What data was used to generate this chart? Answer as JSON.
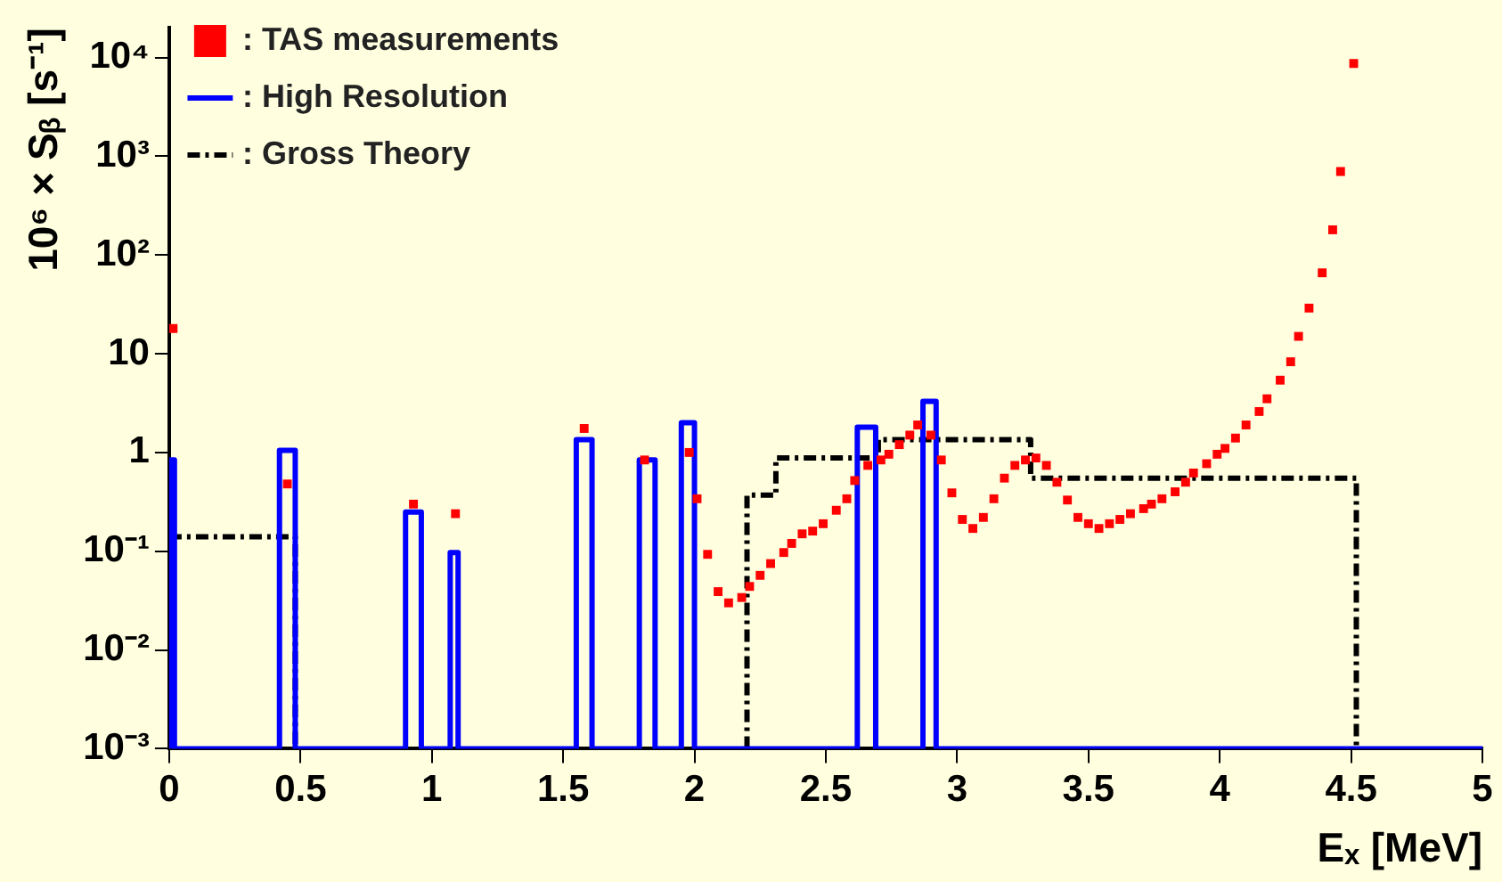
{
  "chart_data": {
    "type": "scatter",
    "xlabel": "Eₓ [MeV]",
    "ylabel": "10⁶ × Sᵦ [s⁻¹]",
    "xlim": [
      0,
      5
    ],
    "xticks": [
      0,
      0.5,
      1,
      1.5,
      2,
      2.5,
      3,
      3.5,
      4,
      4.5,
      5
    ],
    "ylim": [
      0.001,
      20000
    ],
    "yticks": [
      {
        "value": 0.001,
        "label": "10⁻³"
      },
      {
        "value": 0.01,
        "label": "10⁻²"
      },
      {
        "value": 0.1,
        "label": "10⁻¹"
      },
      {
        "value": 1,
        "label": "1"
      },
      {
        "value": 10,
        "label": "10"
      },
      {
        "value": 100,
        "label": "10²"
      },
      {
        "value": 1000,
        "label": "10³"
      },
      {
        "value": 10000,
        "label": "10⁴"
      }
    ],
    "log": "y",
    "legend": "top left",
    "series": [
      {
        "name": ": TAS measurements",
        "type": "scatter",
        "marker": "square",
        "color": "#ff0000",
        "x": [
          0.015,
          0.45,
          0.93,
          1.09,
          1.58,
          1.81,
          1.98,
          2.01,
          2.05,
          2.09,
          2.13,
          2.18,
          2.21,
          2.25,
          2.29,
          2.34,
          2.37,
          2.41,
          2.45,
          2.49,
          2.54,
          2.58,
          2.61,
          2.66,
          2.71,
          2.74,
          2.78,
          2.82,
          2.85,
          2.9,
          2.94,
          2.98,
          3.02,
          3.06,
          3.1,
          3.14,
          3.18,
          3.22,
          3.26,
          3.3,
          3.34,
          3.38,
          3.42,
          3.46,
          3.5,
          3.54,
          3.58,
          3.62,
          3.66,
          3.71,
          3.74,
          3.78,
          3.83,
          3.87,
          3.9,
          3.95,
          3.99,
          4.02,
          4.06,
          4.1,
          4.15,
          4.18,
          4.23,
          4.27,
          4.3,
          4.34,
          4.39,
          4.43,
          4.46,
          4.51
        ],
        "values": [
          18,
          0.48,
          0.3,
          0.24,
          1.75,
          0.84,
          1.0,
          0.34,
          0.093,
          0.039,
          0.03,
          0.034,
          0.044,
          0.057,
          0.075,
          0.097,
          0.12,
          0.15,
          0.16,
          0.19,
          0.26,
          0.34,
          0.52,
          0.74,
          0.84,
          0.96,
          1.2,
          1.5,
          1.9,
          1.5,
          0.84,
          0.39,
          0.21,
          0.17,
          0.22,
          0.34,
          0.55,
          0.74,
          0.84,
          0.88,
          0.74,
          0.5,
          0.33,
          0.22,
          0.19,
          0.17,
          0.19,
          0.21,
          0.24,
          0.27,
          0.3,
          0.34,
          0.4,
          0.5,
          0.62,
          0.77,
          0.96,
          1.1,
          1.4,
          1.9,
          2.6,
          3.5,
          5.4,
          8.3,
          15,
          29,
          66,
          180,
          700,
          8700
        ]
      },
      {
        "name": ": High Resolution",
        "type": "line",
        "line_style": "solid",
        "color": "#0000ff",
        "x": [
          0,
          0,
          0.02,
          0.02,
          0.42,
          0.42,
          0.48,
          0.48,
          0.9,
          0.9,
          0.96,
          0.96,
          1.07,
          1.07,
          1.1,
          1.1,
          1.55,
          1.55,
          1.61,
          1.61,
          1.79,
          1.79,
          1.85,
          1.85,
          1.95,
          1.95,
          2.0,
          2.0,
          2.62,
          2.62,
          2.69,
          2.69,
          2.87,
          2.87,
          2.92,
          2.92,
          5
        ],
        "values": [
          0.001,
          0.84,
          0.84,
          0.001,
          0.001,
          1.05,
          1.05,
          0.001,
          0.001,
          0.25,
          0.25,
          0.001,
          0.001,
          0.097,
          0.097,
          0.001,
          0.001,
          1.35,
          1.35,
          0.001,
          0.001,
          0.84,
          0.84,
          0.001,
          0.001,
          2.0,
          2.0,
          0.001,
          0.001,
          1.8,
          1.8,
          0.001,
          0.001,
          3.3,
          3.3,
          0.001,
          0.001
        ]
      },
      {
        "name": ": Gross Theory",
        "type": "line",
        "line_style": "dashed",
        "color": "#000000",
        "x": [
          0,
          0.48,
          0.48,
          1.0,
          2.2,
          2.2,
          2.31,
          2.31,
          2.7,
          2.7,
          3.28,
          3.28,
          4.52,
          4.52
        ],
        "values": [
          0.14,
          0.14,
          0.001,
          null,
          0.001,
          0.37,
          0.37,
          0.88,
          0.88,
          1.35,
          1.35,
          0.55,
          0.55,
          0.001
        ]
      }
    ]
  }
}
